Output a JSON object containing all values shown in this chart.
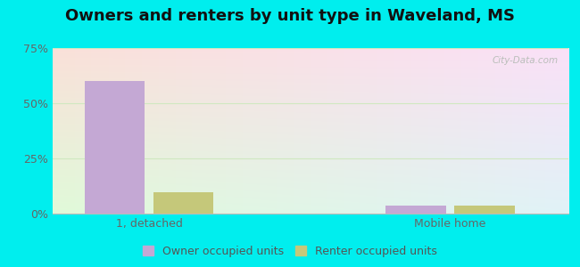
{
  "title": "Owners and renters by unit type in Waveland, MS",
  "categories": [
    "1, detached",
    "Mobile home"
  ],
  "owner_values": [
    60.0,
    3.5
  ],
  "renter_values": [
    9.5,
    3.5
  ],
  "owner_color": "#c4a8d4",
  "renter_color": "#c5c87a",
  "bar_width": 0.28,
  "ylim": [
    0,
    75
  ],
  "yticks": [
    0,
    25,
    50,
    75
  ],
  "ytick_labels": [
    "0%",
    "25%",
    "50%",
    "75%"
  ],
  "outer_bg": "#00eeee",
  "plot_bg_color": "#e8f5e2",
  "grid_color": "#d0e8c0",
  "title_fontsize": 13,
  "tick_fontsize": 9,
  "legend_fontsize": 9,
  "watermark": "City-Data.com",
  "group_centers": [
    0.45,
    1.85
  ]
}
